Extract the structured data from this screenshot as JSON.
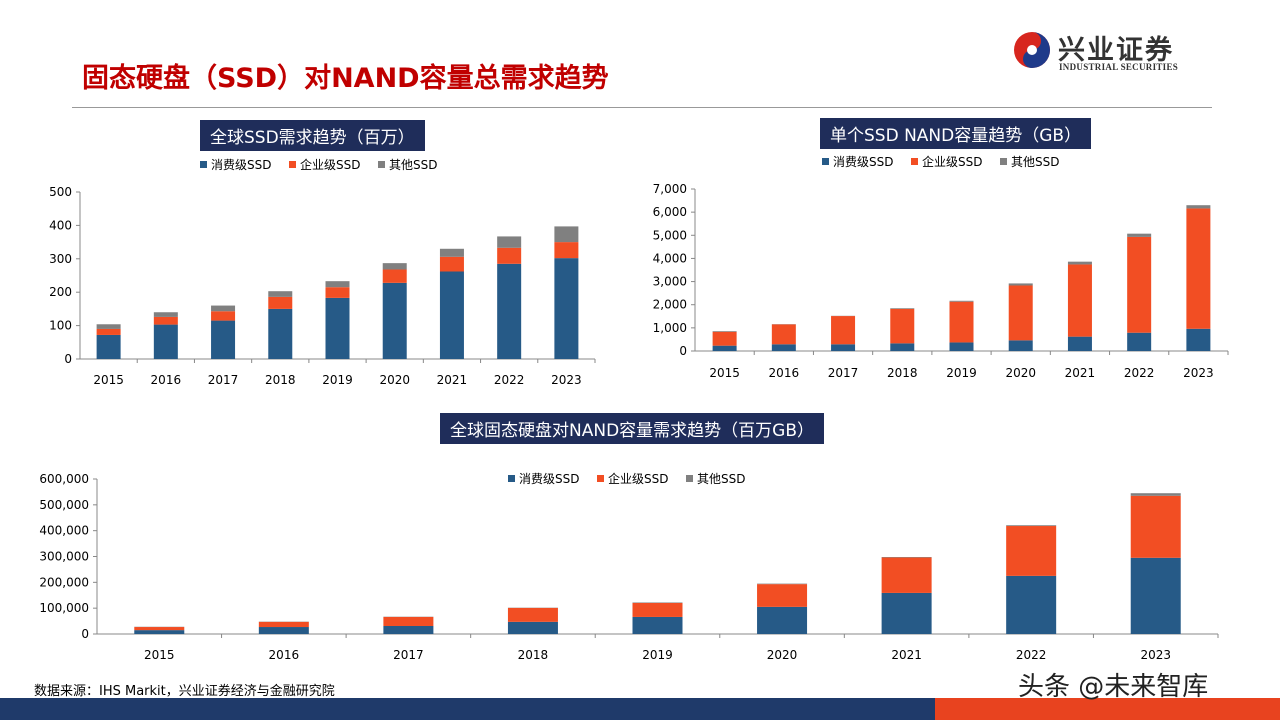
{
  "title": "固态硬盘（SSD）对NAND容量总需求趋势",
  "logo": {
    "cn": "兴业证券",
    "en": "INDUSTRIAL SECURITIES"
  },
  "source": "数据来源：IHS Markit，兴业证券经济与金融研究院",
  "watermark": "头条 @未来智库",
  "colors": {
    "consumer": "#265a87",
    "enterprise": "#f24e23",
    "other": "#808080",
    "title_red": "#c00000",
    "navy": "#1f2d5a"
  },
  "chart_data": [
    {
      "type": "bar",
      "stacked": true,
      "title": "全球SSD需求趋势（百万）",
      "categories": [
        "2015",
        "2016",
        "2017",
        "2018",
        "2019",
        "2020",
        "2021",
        "2022",
        "2023"
      ],
      "ylim": [
        0,
        500
      ],
      "yticks": [
        0,
        100,
        200,
        300,
        400,
        500
      ],
      "ytick_labels": [
        "0",
        "100",
        "200",
        "300",
        "400",
        "500"
      ],
      "legend": "top",
      "series": [
        {
          "name": "消费级SSD",
          "values": [
            72,
            103,
            115,
            150,
            183,
            228,
            262,
            285,
            302
          ]
        },
        {
          "name": "企业级SSD",
          "values": [
            18,
            23,
            28,
            36,
            32,
            40,
            44,
            48,
            48
          ]
        },
        {
          "name": "其他SSD",
          "values": [
            14,
            14,
            17,
            17,
            18,
            19,
            24,
            34,
            47
          ]
        }
      ]
    },
    {
      "type": "bar",
      "stacked": true,
      "title": "单个SSD NAND容量趋势（GB）",
      "categories": [
        "2015",
        "2016",
        "2017",
        "2018",
        "2019",
        "2020",
        "2021",
        "2022",
        "2023"
      ],
      "ylim": [
        0,
        7000
      ],
      "yticks": [
        0,
        1000,
        2000,
        3000,
        4000,
        5000,
        6000,
        7000
      ],
      "ytick_labels": [
        "0",
        "1,000",
        "2,000",
        "3,000",
        "4,000",
        "5,000",
        "6,000",
        "7,000"
      ],
      "legend": "top",
      "series": [
        {
          "name": "消费级SSD",
          "values": [
            230,
            290,
            290,
            330,
            370,
            460,
            620,
            790,
            960
          ]
        },
        {
          "name": "企业级SSD",
          "values": [
            600,
            860,
            1220,
            1490,
            1760,
            2370,
            3120,
            4140,
            5200
          ]
        },
        {
          "name": "其他SSD",
          "values": [
            30,
            10,
            10,
            30,
            40,
            90,
            120,
            140,
            140
          ]
        }
      ]
    },
    {
      "type": "bar",
      "stacked": true,
      "title": "全球固态硬盘对NAND容量需求趋势（百万GB）",
      "categories": [
        "2015",
        "2016",
        "2017",
        "2018",
        "2019",
        "2020",
        "2021",
        "2022",
        "2023"
      ],
      "ylim": [
        0,
        600000
      ],
      "yticks": [
        0,
        100000,
        200000,
        300000,
        400000,
        500000,
        600000
      ],
      "ytick_labels": [
        "0",
        "100,000",
        "200,000",
        "300,000",
        "400,000",
        "500,000",
        "600,000"
      ],
      "legend": "top",
      "series": [
        {
          "name": "消费级SSD",
          "values": [
            15000,
            27000,
            31000,
            47000,
            66000,
            105000,
            159000,
            225000,
            295000
          ]
        },
        {
          "name": "企业级SSD",
          "values": [
            12000,
            20000,
            35000,
            54000,
            54000,
            88000,
            137000,
            193000,
            240000
          ]
        },
        {
          "name": "其他SSD",
          "values": [
            1000,
            1000,
            1000,
            1000,
            2000,
            2000,
            2000,
            3000,
            10000
          ]
        }
      ]
    }
  ]
}
